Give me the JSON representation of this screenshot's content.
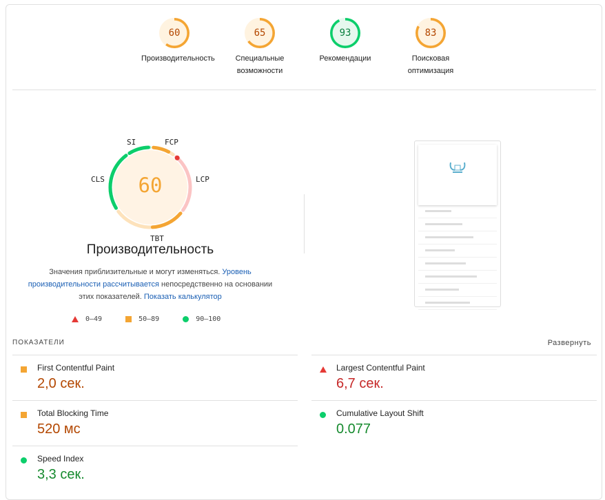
{
  "categories": [
    {
      "score": "60",
      "label": "Производительность",
      "color": "#f4a533",
      "bg": "#fff3e0",
      "fill": 0.6
    },
    {
      "score": "65",
      "label": "Специальные возможности",
      "color": "#f4a533",
      "bg": "#fff3e0",
      "fill": 0.65
    },
    {
      "score": "93",
      "label": "Рекомендации",
      "color": "#0cce6b",
      "bg": "#e6f8ee",
      "fill": 0.93
    },
    {
      "score": "83",
      "label": "Поисковая оптимизация",
      "color": "#f4a533",
      "bg": "#fff3e0",
      "fill": 0.83
    }
  ],
  "gauge": {
    "score": "60",
    "labels": {
      "si": "SI",
      "fcp": "FCP",
      "lcp": "LCP",
      "tbt": "TBT",
      "cls": "CLS"
    }
  },
  "perf": {
    "title": "Производительность",
    "desc1": "Значения приблизительные и могут изменяться. ",
    "link1": "Уровень производительности рассчитывается",
    "desc2": " непосредственно на основании этих показателей. ",
    "link2": "Показать калькулятор"
  },
  "legend": {
    "fail": "0–49",
    "average": "50–89",
    "pass": "90–100"
  },
  "metrics_header": "ПОКАЗАТЕЛИ",
  "expand": "Развернуть",
  "metrics": [
    {
      "name": "First Contentful Paint",
      "value": "2,0 сек.",
      "status": "average"
    },
    {
      "name": "Largest Contentful Paint",
      "value": "6,7 сек.",
      "status": "fail"
    },
    {
      "name": "Total Blocking Time",
      "value": "520 мс",
      "status": "average"
    },
    {
      "name": "Cumulative Layout Shift",
      "value": "0.077",
      "status": "pass"
    },
    {
      "name": "Speed Index",
      "value": "3,3 сек.",
      "status": "pass"
    }
  ],
  "colors": {
    "fail": "#e53935",
    "average": "#f4a533",
    "pass": "#0cce6b",
    "fail_text": "#c62828",
    "average_text": "#b34700",
    "pass_text": "#168a2e"
  }
}
